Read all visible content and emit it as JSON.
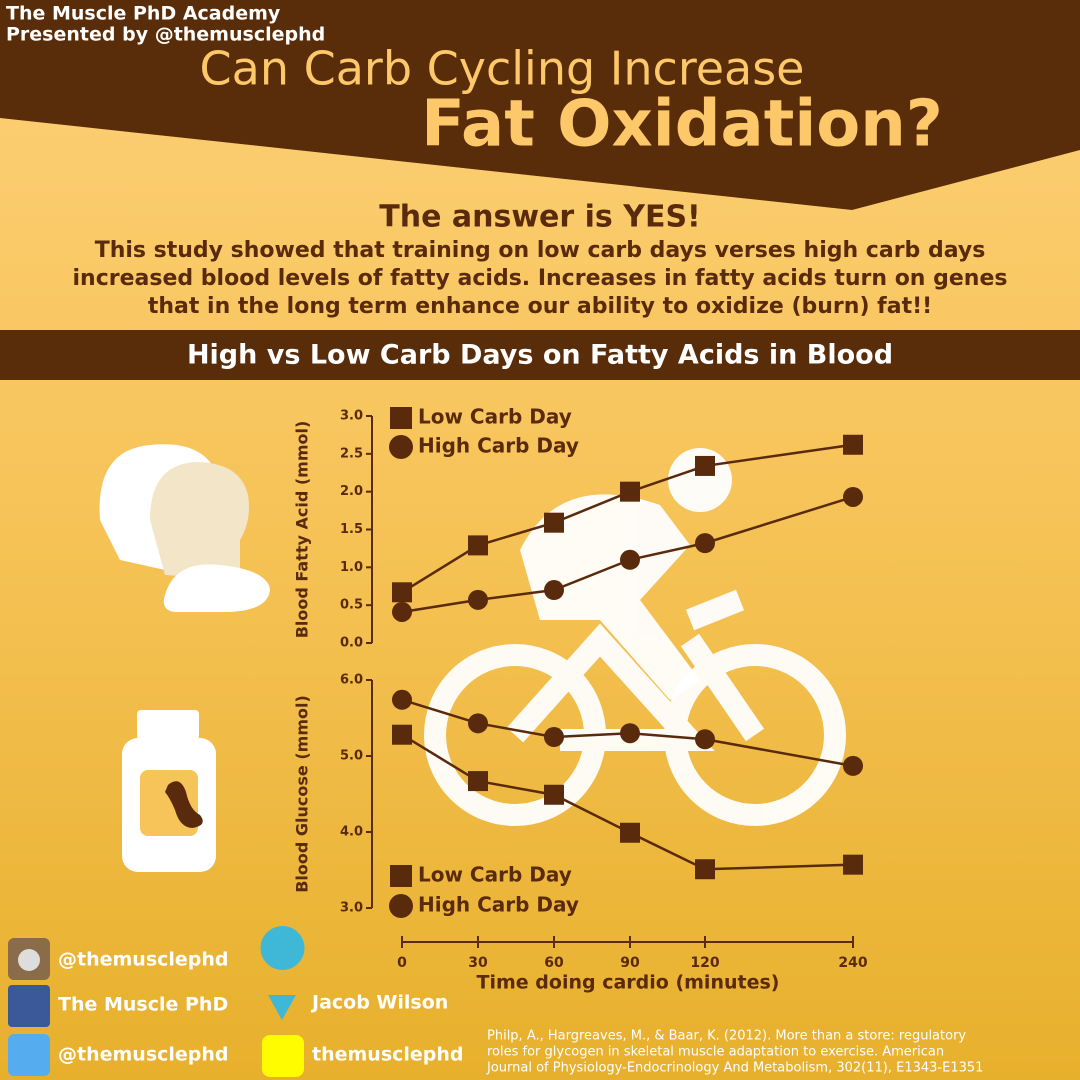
{
  "header": {
    "academy": "The Muscle PhD Academy",
    "presenter": "Presented by @themusclephd"
  },
  "title": {
    "line1": "Can Carb Cycling Increase",
    "line2": "Fat Oxidation?"
  },
  "answer": {
    "heading": "The answer is YES!",
    "lines": [
      "This study showed that training on low carb days verses high carb days",
      "increased blood levels of fatty acids. Increases in fatty acids turn on genes",
      "that in the long term enhance our ability to oxidize (burn) fat!!"
    ]
  },
  "banner": "High vs Low Carb Days on Fatty Acids in Blood",
  "chart_data": [
    {
      "type": "line",
      "y_label": "Blood Fatty Acid (mmol)",
      "ylim": [
        0,
        3
      ],
      "yticks": [
        {
          "value": 0,
          "label": "0.0"
        },
        {
          "value": 0.5,
          "label": "0.5"
        },
        {
          "value": 1,
          "label": "1.0"
        },
        {
          "value": 1.5,
          "label": "1.5"
        },
        {
          "value": 2,
          "label": "2.0"
        },
        {
          "value": 2.5,
          "label": "2.5"
        },
        {
          "value": 3,
          "label": "3.0"
        }
      ],
      "legend": "upper left",
      "series": [
        {
          "name": "Low Carb Day",
          "marker": "square",
          "color": "#5a2a0c",
          "values": [
            0.67,
            1.29,
            1.59,
            2.0,
            2.34,
            2.62
          ]
        },
        {
          "name": "High Carb Day",
          "marker": "circle",
          "color": "#5a2a0c",
          "values": [
            0.41,
            0.57,
            0.7,
            1.1,
            1.32,
            1.93
          ]
        }
      ]
    },
    {
      "type": "line",
      "y_label": "Blood Glucose (mmol)",
      "x_label": "Time doing cardio (minutes)",
      "categories": [
        "0",
        "30",
        "60",
        "90",
        "120",
        "240"
      ],
      "ylim": [
        3,
        6
      ],
      "yticks": [
        {
          "value": 3,
          "label": "3.0"
        },
        {
          "value": 4,
          "label": "4.0"
        },
        {
          "value": 5,
          "label": "5.0"
        },
        {
          "value": 6,
          "label": "6.0"
        }
      ],
      "legend": "lower left",
      "series": [
        {
          "name": "Low Carb Day",
          "marker": "square",
          "color": "#5a2a0c",
          "values": [
            5.28,
            4.67,
            4.49,
            3.99,
            3.51,
            3.57
          ]
        },
        {
          "name": "High Carb Day",
          "marker": "circle",
          "color": "#5a2a0c",
          "values": [
            5.74,
            5.43,
            5.25,
            5.3,
            5.22,
            4.87
          ]
        }
      ]
    }
  ],
  "social": [
    "@themusclephd",
    "The Muscle PhD",
    "@themusclephd",
    "Jacob Wilson",
    "themusclephd"
  ],
  "citation": [
    "Philp, A., Hargreaves, M., & Baar, K. (2012). More than a store: regulatory",
    "roles for glycogen in skeletal muscle adaptation to exercise. American",
    "Journal of Physiology-Endocrinology And Metabolism, 302(11), E1343-E1351"
  ]
}
